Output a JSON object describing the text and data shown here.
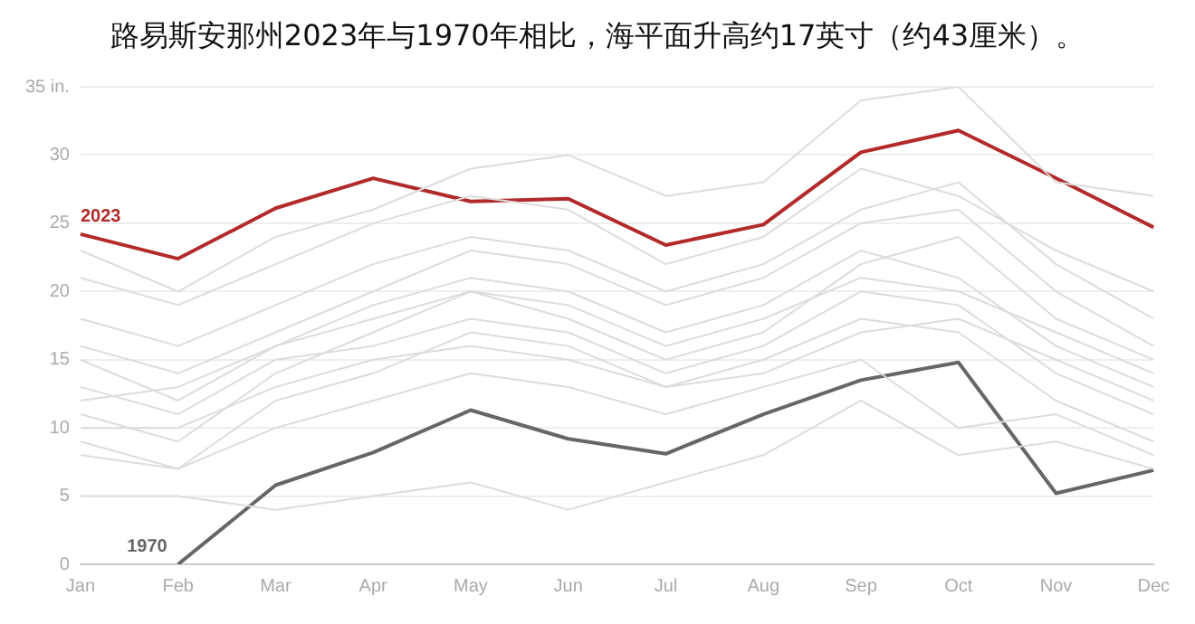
{
  "chart_data": {
    "type": "line",
    "title": "路易斯安那州2023年与1970年相比，海平面升高约17英寸（约43厘米）。",
    "categories": [
      "Jan",
      "Feb",
      "Mar",
      "Apr",
      "May",
      "Jun",
      "Jul",
      "Aug",
      "Sep",
      "Oct",
      "Nov",
      "Dec"
    ],
    "ylim": [
      0,
      35
    ],
    "yticks": [
      0,
      5,
      10,
      15,
      20,
      25,
      30,
      {
        "value": 35,
        "label": "35 in."
      }
    ],
    "grid": "y",
    "legend": false,
    "marker": "none",
    "line_style": "solid",
    "series": [
      {
        "color": "#dcdcdc",
        "values": [
          9,
          7,
          12,
          14,
          17,
          16,
          13,
          15,
          18,
          17,
          12,
          9
        ]
      },
      {
        "color": "#dcdcdc",
        "values": [
          15,
          12,
          16,
          19,
          21,
          20,
          17,
          19,
          23,
          21,
          16,
          13
        ]
      },
      {
        "color": "#dcdcdc",
        "values": [
          11,
          9,
          14,
          17,
          20,
          18,
          15,
          17,
          22,
          24,
          18,
          15
        ]
      },
      {
        "color": "#dcdcdc",
        "values": [
          18,
          16,
          19,
          22,
          24,
          23,
          20,
          22,
          26,
          28,
          22,
          18
        ]
      },
      {
        "color": "#dcdcdc",
        "values": [
          13,
          11,
          15,
          16,
          18,
          17,
          14,
          16,
          20,
          19,
          14,
          11
        ]
      },
      {
        "color": "#dcdcdc",
        "values": [
          5,
          5,
          4,
          5,
          6,
          4,
          6,
          8,
          12,
          8,
          9,
          7
        ]
      },
      {
        "color": "#dcdcdc",
        "values": [
          21,
          19,
          22,
          25,
          27,
          26,
          22,
          24,
          29,
          27,
          23,
          20
        ]
      },
      {
        "color": "#dcdcdc",
        "values": [
          8,
          7,
          10,
          12,
          14,
          13,
          11,
          13,
          15,
          10,
          11,
          8
        ]
      },
      {
        "color": "#dcdcdc",
        "values": [
          16,
          14,
          17,
          20,
          23,
          22,
          19,
          21,
          25,
          26,
          20,
          16
        ]
      },
      {
        "color": "#dcdcdc",
        "values": [
          10,
          10,
          13,
          15,
          16,
          15,
          13,
          14,
          17,
          18,
          15,
          12
        ]
      },
      {
        "color": "#dcdcdc",
        "values": [
          23,
          20,
          24,
          26,
          29,
          30,
          27,
          28,
          34,
          35,
          28,
          27
        ]
      },
      {
        "color": "#dcdcdc",
        "values": [
          12,
          13,
          16,
          18,
          20,
          19,
          16,
          18,
          21,
          20,
          17,
          14
        ]
      },
      {
        "name": "2023",
        "color": "#b22a2a",
        "values": [
          24.2,
          22.4,
          26.1,
          28.3,
          26.6,
          26.8,
          23.4,
          24.9,
          30.2,
          31.8,
          28.3,
          24.7
        ]
      },
      {
        "name": "1970",
        "color": "#666666",
        "values": [
          null,
          0,
          5.8,
          8.2,
          11.3,
          9.2,
          8.1,
          11.0,
          13.5,
          14.8,
          5.2,
          6.9
        ]
      }
    ]
  }
}
